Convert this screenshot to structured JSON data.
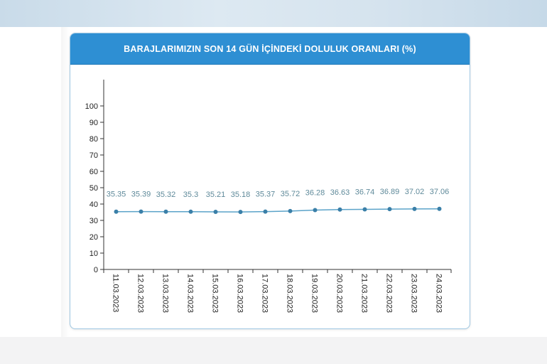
{
  "chart_data": {
    "type": "line",
    "title": "BARAJLARIMIZIN SON 14 GÜN İÇİNDEKİ DOLULUK ORANLARI (%)",
    "xlabel": "",
    "ylabel": "",
    "categories": [
      "11.03.2023",
      "12.03.2023",
      "13.03.2023",
      "14.03.2023",
      "15.03.2023",
      "16.03.2023",
      "17.03.2023",
      "18.03.2023",
      "19.03.2023",
      "20.03.2023",
      "21.03.2023",
      "22.03.2023",
      "23.03.2023",
      "24.03.2023"
    ],
    "series": [
      {
        "values": [
          35.35,
          35.39,
          35.32,
          35.3,
          35.21,
          35.18,
          35.37,
          35.72,
          36.28,
          36.63,
          36.74,
          36.89,
          37.02,
          37.06
        ],
        "labels": [
          "35.35",
          "35.39",
          "35.32",
          "35.3",
          "35.21",
          "35.18",
          "35.37",
          "35.72",
          "36.28",
          "36.63",
          "36.74",
          "36.89",
          "37.02",
          "37.06"
        ]
      }
    ],
    "ylim": [
      0,
      100
    ],
    "yticks": [
      "0",
      "10",
      "20",
      "30",
      "40",
      "50",
      "60",
      "70",
      "80",
      "90",
      "100"
    ],
    "grid": false,
    "colors": {
      "line": "#5ba3c9",
      "marker": "#3a7fa8",
      "header": "#2e8fd3"
    }
  }
}
